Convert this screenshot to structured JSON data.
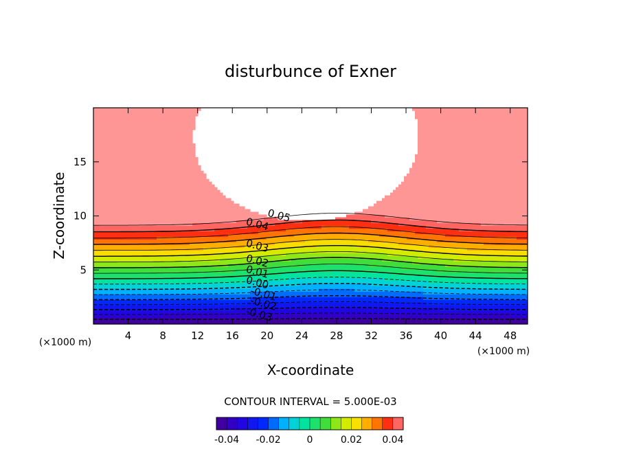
{
  "chart_data": {
    "type": "heatmap",
    "subtype": "filled-contour",
    "title": "disturbunce of Exner",
    "xlabel": "X-coordinate",
    "ylabel": "Z-coordinate",
    "x_unit": "(×1000 m)",
    "xlim": [
      0,
      50
    ],
    "ylim": [
      0,
      20
    ],
    "x_ticks": [
      4,
      8,
      12,
      16,
      20,
      24,
      28,
      32,
      36,
      40,
      44,
      48
    ],
    "y_ticks": [
      5,
      10,
      15
    ],
    "contour_interval_text": "CONTOUR INTERVAL = 5.000E-03",
    "colorbar": {
      "range": [
        -0.045,
        0.045
      ],
      "ticks": [
        "-0.04",
        "-0.02",
        "0",
        "0.02",
        "0.04"
      ],
      "tick_values": [
        -0.04,
        -0.02,
        0,
        0.02,
        0.04
      ]
    },
    "contour_labels": [
      {
        "text": "0.05",
        "x": 20,
        "z": 10
      },
      {
        "text": "0.04",
        "x": 17.5,
        "z": 9.2
      },
      {
        "text": "0.03",
        "x": 17.5,
        "z": 7.2
      },
      {
        "text": "0.02",
        "x": 17.5,
        "z": 5.8
      },
      {
        "text": "0.01",
        "x": 17.5,
        "z": 4.8
      },
      {
        "text": "0.00",
        "x": 17.5,
        "z": 3.8
      },
      {
        "text": "-0.01",
        "x": 18,
        "z": 2.8
      },
      {
        "text": "-0.02",
        "x": 18,
        "z": 1.9
      },
      {
        "text": "-0.03",
        "x": 17.5,
        "z": 0.9
      }
    ],
    "field_description": "value increases with height; positive values above, negative near ground; values above ~0.05 left white in an elliptical region centered near x=24, z=17"
  }
}
